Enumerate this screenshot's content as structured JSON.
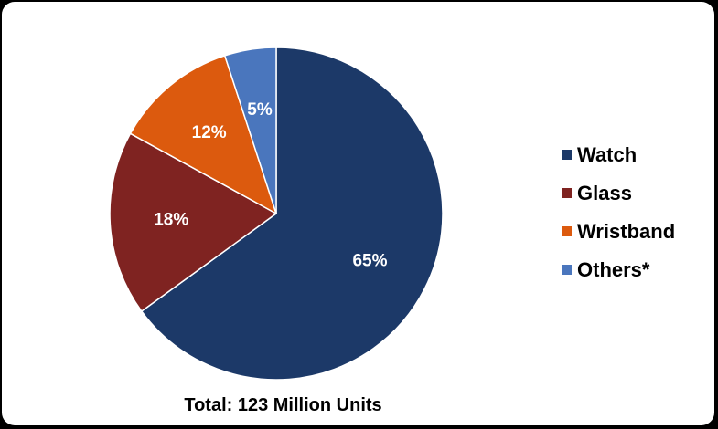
{
  "chart_data": {
    "type": "pie",
    "categories": [
      "Watch",
      "Glass",
      "Wristband",
      "Others*"
    ],
    "values": [
      65,
      18,
      12,
      5
    ],
    "value_labels": [
      "65%",
      "18%",
      "12%",
      "5%"
    ],
    "colors": [
      "#1c3968",
      "#7f2321",
      "#dc5a0e",
      "#4a76bd"
    ],
    "start_angle_deg": 0,
    "direction": "clockwise",
    "legend_position": "right",
    "caption": "Total: 123 Million Units"
  },
  "legend": {
    "items": [
      {
        "label": "Watch",
        "color": "#1c3968"
      },
      {
        "label": "Glass",
        "color": "#7f2321"
      },
      {
        "label": "Wristband",
        "color": "#dc5a0e"
      },
      {
        "label": "Others*",
        "color": "#4a76bd"
      }
    ]
  }
}
